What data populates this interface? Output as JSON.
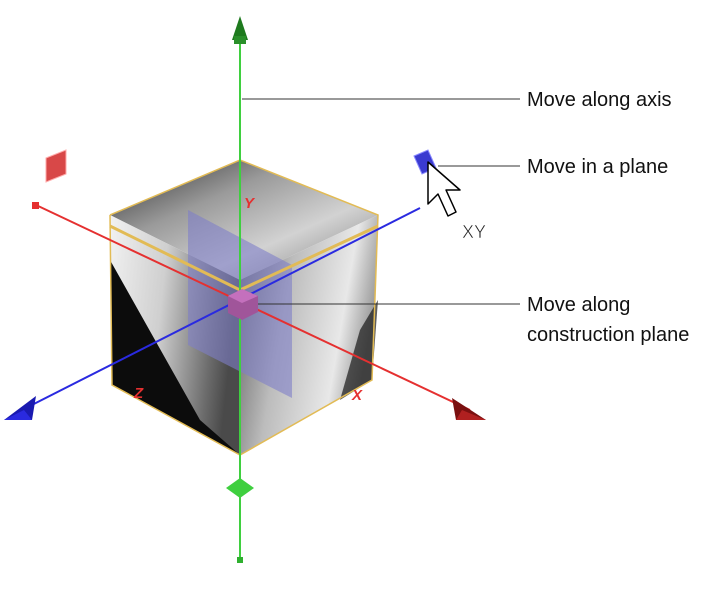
{
  "callouts": {
    "move_along_axis": "Move along axis",
    "move_in_plane": "Move in a plane",
    "move_along_construction_line1": "Move along",
    "move_along_construction_line2": "construction plane"
  },
  "gizmo": {
    "axis_label_x": "X",
    "axis_label_y": "Y",
    "axis_label_z": "Z",
    "cursor_plane_label": "XY"
  },
  "colors": {
    "x_axis": "#e53030",
    "y_axis": "#3fcf3f",
    "z_axis": "#2a2ae0",
    "plane_highlight": "#e2bb55",
    "center_handle": "#a0559a",
    "construction_plane": "#7e7ec8"
  },
  "icons": {
    "pointer": "cursor-arrow-icon"
  }
}
